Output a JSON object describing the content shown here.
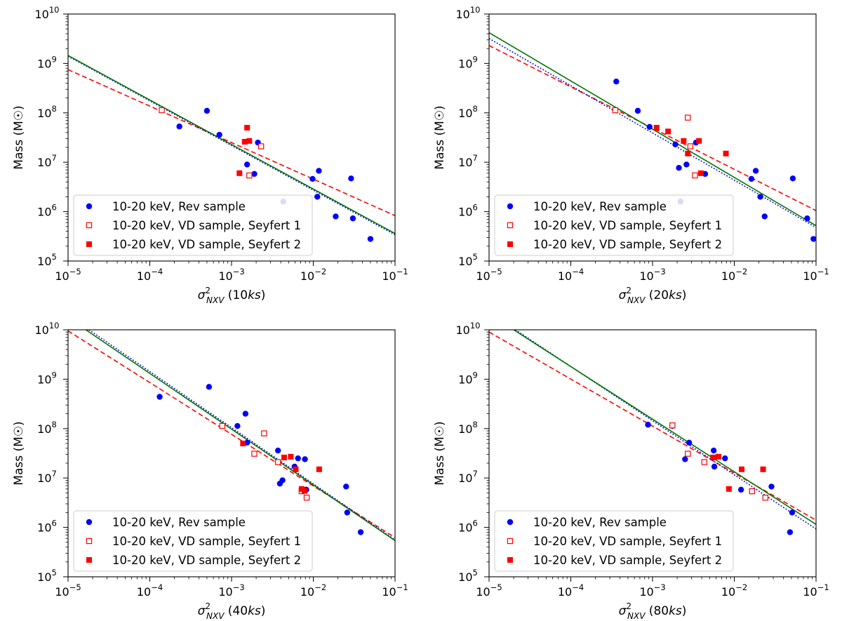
{
  "chart_data": [
    {
      "type": "scatter",
      "xlabel": "σ²_NXV (10ks)",
      "xlabel_parts": {
        "sym": "σ",
        "sup": "2",
        "sub": "NXV",
        "open": " (10",
        "unit": "ks",
        "close": ")"
      },
      "ylabel": "Mass (M☉)",
      "xscale": "log",
      "yscale": "log",
      "xlim": [
        1e-05,
        0.1
      ],
      "ylim": [
        100000,
        10000000000
      ],
      "xticks": [
        {
          "base": "10",
          "exp": "−5"
        },
        {
          "base": "10",
          "exp": "−4"
        },
        {
          "base": "10",
          "exp": "−3"
        },
        {
          "base": "10",
          "exp": "−2"
        },
        {
          "base": "10",
          "exp": "−1"
        }
      ],
      "yticks": [
        {
          "base": "10",
          "exp": "5"
        },
        {
          "base": "10",
          "exp": "6"
        },
        {
          "base": "10",
          "exp": "7"
        },
        {
          "base": "10",
          "exp": "8"
        },
        {
          "base": "10",
          "exp": "9"
        },
        {
          "base": "10",
          "exp": "10"
        }
      ],
      "legend_position": "lower-left",
      "series": [
        {
          "name": "10-20 keV, Rev sample",
          "marker": "circle",
          "color": "#0000ff",
          "points": [
            [
              0.00023,
              53000000
            ],
            [
              0.0005,
              110000000
            ],
            [
              0.00071,
              36000000
            ],
            [
              0.00155,
              9000000
            ],
            [
              0.0019,
              5800000
            ],
            [
              0.0021,
              25000000
            ],
            [
              0.0043,
              1600000
            ],
            [
              0.0098,
              4600000
            ],
            [
              0.0112,
              2000000
            ],
            [
              0.0117,
              6700000
            ],
            [
              0.0188,
              800000
            ],
            [
              0.029,
              4700000
            ],
            [
              0.0305,
              730000
            ],
            [
              0.05,
              280000
            ]
          ]
        },
        {
          "name": "10-20 keV, VD sample, Seyfert 1",
          "marker": "open-square",
          "color": "#ff0000",
          "points": [
            [
              0.00014,
              113000000
            ],
            [
              0.00165,
              5400000
            ],
            [
              0.0023,
              21000000
            ]
          ]
        },
        {
          "name": "10-20 keV, VD sample, Seyfert 2",
          "marker": "filled-square",
          "color": "#ff0000",
          "points": [
            [
              0.00125,
              6000000
            ],
            [
              0.00145,
              26000000
            ],
            [
              0.00155,
              50000000
            ],
            [
              0.00165,
              27000000
            ]
          ]
        }
      ],
      "fit_lines": [
        {
          "style": "dashed",
          "color": "#ff0000",
          "points": [
            [
              1e-05,
              750000000
            ],
            [
              0.1,
              830000
            ]
          ]
        },
        {
          "style": "dotted",
          "color": "#0000cc",
          "points": [
            [
              1e-05,
              1400000000
            ],
            [
              0.1,
              340000
            ]
          ]
        },
        {
          "style": "solid",
          "color": "#007700",
          "points": [
            [
              1e-05,
              1450000000
            ],
            [
              0.1,
              360000
            ]
          ]
        }
      ]
    },
    {
      "type": "scatter",
      "xlabel": "σ²_NXV (20ks)",
      "xlabel_parts": {
        "sym": "σ",
        "sup": "2",
        "sub": "NXV",
        "open": " (20",
        "unit": "ks",
        "close": ")"
      },
      "ylabel": "Mass (M☉)",
      "xscale": "log",
      "yscale": "log",
      "xlim": [
        1e-05,
        0.1
      ],
      "ylim": [
        100000,
        10000000000
      ],
      "xticks": [
        {
          "base": "10",
          "exp": "−5"
        },
        {
          "base": "10",
          "exp": "−4"
        },
        {
          "base": "10",
          "exp": "−3"
        },
        {
          "base": "10",
          "exp": "−2"
        },
        {
          "base": "10",
          "exp": "−1"
        }
      ],
      "yticks": [
        {
          "base": "10",
          "exp": "5"
        },
        {
          "base": "10",
          "exp": "6"
        },
        {
          "base": "10",
          "exp": "7"
        },
        {
          "base": "10",
          "exp": "8"
        },
        {
          "base": "10",
          "exp": "9"
        },
        {
          "base": "10",
          "exp": "10"
        }
      ],
      "legend_position": "lower-left",
      "series": [
        {
          "name": "10-20 keV, Rev sample",
          "marker": "circle",
          "color": "#0000ff",
          "points": [
            [
              0.00036,
              430000000
            ],
            [
              0.00066,
              110000000
            ],
            [
              0.00092,
              52000000
            ],
            [
              0.0019,
              23000000
            ],
            [
              0.0021,
              7700000
            ],
            [
              0.0022,
              1600000
            ],
            [
              0.0026,
              9000000
            ],
            [
              0.0034,
              25000000
            ],
            [
              0.0044,
              5800000
            ],
            [
              0.0162,
              4600000
            ],
            [
              0.0183,
              6700000
            ],
            [
              0.0208,
              2000000
            ],
            [
              0.0235,
              800000
            ],
            [
              0.052,
              4700000
            ],
            [
              0.078,
              730000
            ],
            [
              0.093,
              280000
            ]
          ]
        },
        {
          "name": "10-20 keV, VD sample, Seyfert 1",
          "marker": "open-square",
          "color": "#ff0000",
          "points": [
            [
              0.00035,
              113000000
            ],
            [
              0.0027,
              80000000
            ],
            [
              0.0029,
              21000000
            ],
            [
              0.0033,
              5400000
            ]
          ]
        },
        {
          "name": "10-20 keV, VD sample, Seyfert 2",
          "marker": "filled-square",
          "color": "#ff0000",
          "points": [
            [
              0.00112,
              50000000
            ],
            [
              0.00155,
              42000000
            ],
            [
              0.0024,
              27000000
            ],
            [
              0.0027,
              15000000
            ],
            [
              0.0037,
              27000000
            ],
            [
              0.0039,
              6000000
            ],
            [
              0.0079,
              15000000
            ]
          ]
        }
      ],
      "fit_lines": [
        {
          "style": "dashed",
          "color": "#ff0000",
          "points": [
            [
              1e-05,
              2300000000
            ],
            [
              0.1,
              1050000
            ]
          ]
        },
        {
          "style": "dotted",
          "color": "#0000cc",
          "points": [
            [
              1e-05,
              3200000000
            ],
            [
              0.1,
              480000
            ]
          ]
        },
        {
          "style": "solid",
          "color": "#007700",
          "points": [
            [
              1e-05,
              4200000000
            ],
            [
              0.1,
              520000
            ]
          ]
        }
      ]
    },
    {
      "type": "scatter",
      "xlabel": "σ²_NXV (40ks)",
      "xlabel_parts": {
        "sym": "σ",
        "sup": "2",
        "sub": "NXV",
        "open": " (40",
        "unit": "ks",
        "close": ")"
      },
      "ylabel": "Mass (M☉)",
      "xscale": "log",
      "yscale": "log",
      "xlim": [
        1e-05,
        0.1
      ],
      "ylim": [
        100000,
        10000000000
      ],
      "xticks": [
        {
          "base": "10",
          "exp": "−5"
        },
        {
          "base": "10",
          "exp": "−4"
        },
        {
          "base": "10",
          "exp": "−3"
        },
        {
          "base": "10",
          "exp": "−2"
        },
        {
          "base": "10",
          "exp": "−1"
        }
      ],
      "yticks": [
        {
          "base": "10",
          "exp": "5"
        },
        {
          "base": "10",
          "exp": "6"
        },
        {
          "base": "10",
          "exp": "7"
        },
        {
          "base": "10",
          "exp": "8"
        },
        {
          "base": "10",
          "exp": "9"
        },
        {
          "base": "10",
          "exp": "10"
        }
      ],
      "legend_position": "lower-left",
      "series": [
        {
          "name": "10-20 keV, Rev sample",
          "marker": "circle",
          "color": "#0000ff",
          "points": [
            [
              0.000132,
              440000000
            ],
            [
              0.00053,
              700000000
            ],
            [
              0.00118,
              113000000
            ],
            [
              0.00148,
              200000000
            ],
            [
              0.00155,
              52000000
            ],
            [
              0.0037,
              36000000
            ],
            [
              0.0039,
              7700000
            ],
            [
              0.0042,
              9000000
            ],
            [
              0.0059,
              17000000
            ],
            [
              0.0065,
              25000000
            ],
            [
              0.0079,
              24000000
            ],
            [
              0.0082,
              5800000
            ],
            [
              0.0252,
              6700000
            ],
            [
              0.026,
              2000000
            ],
            [
              0.038,
              800000
            ]
          ]
        },
        {
          "name": "10-20 keV, VD sample, Seyfert 1",
          "marker": "open-square",
          "color": "#ff0000",
          "points": [
            [
              0.00077,
              113000000
            ],
            [
              0.0019,
              31000000
            ],
            [
              0.0025,
              80000000
            ],
            [
              0.0037,
              21000000
            ],
            [
              0.0072,
              5400000
            ],
            [
              0.0083,
              4000000
            ]
          ]
        },
        {
          "name": "10-20 keV, VD sample, Seyfert 2",
          "marker": "filled-square",
          "color": "#ff0000",
          "points": [
            [
              0.00138,
              50000000
            ],
            [
              0.0044,
              26000000
            ],
            [
              0.0053,
              27000000
            ],
            [
              0.0061,
              15000000
            ],
            [
              0.0072,
              6000000
            ],
            [
              0.0078,
              5500000
            ],
            [
              0.0118,
              15000000
            ]
          ]
        }
      ],
      "fit_lines": [
        {
          "style": "dashed",
          "color": "#ff0000",
          "points": [
            [
              1e-05,
              9500000000
            ],
            [
              0.1,
              620000
            ]
          ]
        },
        {
          "style": "dotted",
          "color": "#0000cc",
          "points": [
            [
              1.8e-05,
              10000000000
            ],
            [
              0.1,
              560000
            ]
          ]
        },
        {
          "style": "solid",
          "color": "#007700",
          "points": [
            [
              1.65e-05,
              10000000000
            ],
            [
              0.1,
              540000
            ]
          ]
        }
      ]
    },
    {
      "type": "scatter",
      "xlabel": "σ²_NXV (80ks)",
      "xlabel_parts": {
        "sym": "σ",
        "sup": "2",
        "sub": "NXV",
        "open": " (80",
        "unit": "ks",
        "close": ")"
      },
      "ylabel": "Mass (M☉)",
      "xscale": "log",
      "yscale": "log",
      "xlim": [
        1e-05,
        0.1
      ],
      "ylim": [
        100000,
        10000000000
      ],
      "xticks": [
        {
          "base": "10",
          "exp": "−5"
        },
        {
          "base": "10",
          "exp": "−4"
        },
        {
          "base": "10",
          "exp": "−3"
        },
        {
          "base": "10",
          "exp": "−2"
        },
        {
          "base": "10",
          "exp": "−1"
        }
      ],
      "yticks": [
        {
          "base": "10",
          "exp": "5"
        },
        {
          "base": "10",
          "exp": "6"
        },
        {
          "base": "10",
          "exp": "7"
        },
        {
          "base": "10",
          "exp": "8"
        },
        {
          "base": "10",
          "exp": "9"
        },
        {
          "base": "10",
          "exp": "10"
        }
      ],
      "legend_position": "lower-left",
      "series": [
        {
          "name": "10-20 keV, Rev sample",
          "marker": "circle",
          "color": "#0000ff",
          "points": [
            [
              0.00088,
              120000000
            ],
            [
              0.00175,
              113000000
            ],
            [
              0.0025,
              24000000
            ],
            [
              0.0028,
              52000000
            ],
            [
              0.0056,
              36000000
            ],
            [
              0.0057,
              17000000
            ],
            [
              0.0077,
              25000000
            ],
            [
              0.0121,
              5800000
            ],
            [
              0.0285,
              6700000
            ],
            [
              0.048,
              800000
            ],
            [
              0.051,
              2000000
            ]
          ]
        },
        {
          "name": "10-20 keV, VD sample, Seyfert 1",
          "marker": "open-square",
          "color": "#ff0000",
          "points": [
            [
              0.00175,
              116000000
            ],
            [
              0.0027,
              31000000
            ],
            [
              0.0043,
              21000000
            ],
            [
              0.0165,
              5400000
            ],
            [
              0.024,
              4000000
            ]
          ]
        },
        {
          "name": "10-20 keV, VD sample, Seyfert 2",
          "marker": "filled-square",
          "color": "#ff0000",
          "points": [
            [
              0.0055,
              26000000
            ],
            [
              0.0064,
              27000000
            ],
            [
              0.0086,
              6000000
            ],
            [
              0.0123,
              15000000
            ],
            [
              0.0225,
              15000000
            ]
          ]
        }
      ],
      "fit_lines": [
        {
          "style": "dashed",
          "color": "#ff0000",
          "points": [
            [
              1e-05,
              9000000000
            ],
            [
              0.1,
              1400000
            ]
          ]
        },
        {
          "style": "dotted",
          "color": "#0000cc",
          "points": [
            [
              2.1e-05,
              10000000000
            ],
            [
              0.1,
              930000
            ]
          ]
        },
        {
          "style": "solid",
          "color": "#007700",
          "points": [
            [
              2e-05,
              10000000000
            ],
            [
              0.1,
              1150000
            ]
          ]
        }
      ]
    }
  ]
}
